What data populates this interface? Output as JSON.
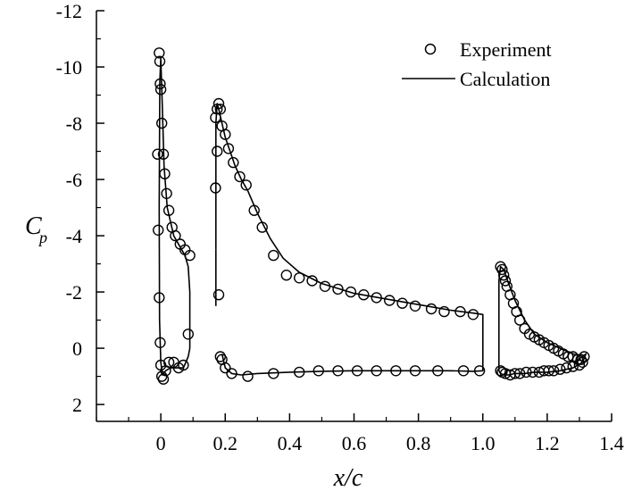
{
  "chart_data": {
    "type": "scatter",
    "title": "",
    "xlabel": "x/c",
    "ylabel_main": "C",
    "ylabel_sub": "p",
    "xlim": [
      -0.2,
      1.4
    ],
    "ylim": [
      2.6,
      -12
    ],
    "y_inverted": true,
    "grid": false,
    "legend_position": "top-right",
    "x_ticks": [
      0,
      0.2,
      0.4,
      0.6,
      0.8,
      1.0,
      1.2,
      1.4
    ],
    "x_tick_labels": [
      "0",
      "0.2",
      "0.4",
      "0.6",
      "0.8",
      "1.0",
      "1.2",
      "1.4"
    ],
    "y_ticks": [
      -12,
      -10,
      -8,
      -6,
      -4,
      -2,
      0,
      2
    ],
    "y_tick_labels": [
      "-12",
      "-10",
      "-8",
      "-6",
      "-4",
      "-2",
      "0",
      "2"
    ],
    "series": [
      {
        "name": "Experiment",
        "kind": "markers",
        "segments": [
          {
            "x": [
              -0.005,
              -0.003,
              -0.002,
              0.0,
              0.003,
              0.008,
              0.012,
              0.018,
              0.025,
              0.035,
              0.045,
              0.06,
              0.075,
              0.09,
              -0.01,
              -0.008,
              -0.005,
              -0.002,
              0.0,
              0.003,
              0.008,
              0.015,
              0.025,
              0.04,
              0.055,
              0.07,
              0.085
            ],
            "y": [
              -10.5,
              -10.2,
              -9.4,
              -9.2,
              -8.0,
              -6.9,
              -6.2,
              -5.5,
              -4.9,
              -4.3,
              -4.0,
              -3.7,
              -3.5,
              -3.3,
              -6.9,
              -4.2,
              -1.8,
              -0.2,
              0.6,
              1.0,
              1.1,
              0.8,
              0.5,
              0.5,
              0.7,
              0.6,
              -0.5
            ]
          },
          {
            "x": [
              0.17,
              0.175,
              0.18,
              0.185,
              0.19,
              0.2,
              0.21,
              0.225,
              0.245,
              0.265,
              0.29,
              0.315,
              0.35,
              0.39,
              0.43,
              0.47,
              0.51,
              0.55,
              0.59,
              0.63,
              0.67,
              0.71,
              0.75,
              0.79,
              0.84,
              0.88,
              0.93,
              0.97,
              0.185,
              0.2,
              0.22,
              0.27,
              0.35,
              0.43,
              0.49,
              0.55,
              0.61,
              0.67,
              0.73,
              0.79,
              0.86,
              0.94,
              0.99,
              0.17,
              0.175,
              0.18,
              0.19
            ],
            "y": [
              -8.2,
              -8.5,
              -8.7,
              -8.5,
              -7.9,
              -7.6,
              -7.1,
              -6.6,
              -6.1,
              -5.8,
              -4.9,
              -4.3,
              -3.3,
              -2.6,
              -2.5,
              -2.4,
              -2.2,
              -2.1,
              -2.0,
              -1.9,
              -1.8,
              -1.7,
              -1.6,
              -1.5,
              -1.4,
              -1.3,
              -1.3,
              -1.2,
              0.3,
              0.7,
              0.9,
              1.0,
              0.9,
              0.85,
              0.8,
              0.8,
              0.8,
              0.8,
              0.8,
              0.8,
              0.8,
              0.8,
              0.8,
              -5.7,
              -7.0,
              -1.9,
              0.4
            ]
          },
          {
            "x": [
              1.055,
              1.06,
              1.065,
              1.07,
              1.075,
              1.085,
              1.095,
              1.105,
              1.115,
              1.13,
              1.145,
              1.16,
              1.175,
              1.19,
              1.205,
              1.22,
              1.235,
              1.25,
              1.265,
              1.28,
              1.295,
              1.305,
              1.315,
              1.055,
              1.06,
              1.07,
              1.085,
              1.1,
              1.115,
              1.135,
              1.155,
              1.175,
              1.19,
              1.205,
              1.22,
              1.24,
              1.26,
              1.28,
              1.3,
              1.31
            ],
            "y": [
              -2.9,
              -2.8,
              -2.6,
              -2.4,
              -2.2,
              -1.9,
              -1.6,
              -1.3,
              -1.0,
              -0.7,
              -0.5,
              -0.4,
              -0.3,
              -0.2,
              -0.1,
              0.0,
              0.1,
              0.2,
              0.3,
              0.3,
              0.4,
              0.4,
              0.3,
              0.8,
              0.85,
              0.9,
              0.95,
              0.9,
              0.9,
              0.85,
              0.85,
              0.85,
              0.8,
              0.8,
              0.8,
              0.75,
              0.7,
              0.65,
              0.6,
              0.5
            ]
          }
        ]
      },
      {
        "name": "Calculation",
        "kind": "line",
        "segments": [
          {
            "x": [
              0.09,
              0.09,
              0.085,
              0.075,
              0.06,
              0.04,
              0.02,
              0.01,
              0.005,
              0.0,
              -0.003,
              -0.005,
              -0.004,
              0.0,
              0.005,
              0.015,
              0.03,
              0.05,
              0.07,
              0.085,
              0.09
            ],
            "y": [
              0.0,
              -2.0,
              -2.9,
              -3.3,
              -3.6,
              -4.0,
              -5.0,
              -6.5,
              -8.5,
              -10.3,
              -9.5,
              -5.0,
              -1.0,
              0.5,
              0.95,
              0.8,
              0.7,
              0.7,
              0.7,
              0.3,
              0.0
            ]
          },
          {
            "x": [
              0.171,
              0.171,
              0.175,
              0.18,
              0.19,
              0.2,
              0.215,
              0.23,
              0.25,
              0.27,
              0.3,
              0.34,
              0.38,
              0.43,
              0.5,
              0.6,
              0.7,
              0.8,
              0.9,
              0.97,
              1.0,
              1.0,
              0.97,
              0.9,
              0.8,
              0.7,
              0.6,
              0.5,
              0.4,
              0.3,
              0.25,
              0.22,
              0.2,
              0.19
            ],
            "y": [
              -3.5,
              -8.0,
              -8.7,
              -8.5,
              -8.0,
              -7.5,
              -7.0,
              -6.5,
              -6.0,
              -5.6,
              -4.8,
              -3.9,
              -3.2,
              -2.7,
              -2.3,
              -1.95,
              -1.75,
              -1.55,
              -1.35,
              -1.25,
              -1.2,
              0.8,
              0.82,
              0.8,
              0.8,
              0.8,
              0.8,
              0.82,
              0.85,
              0.9,
              0.95,
              0.9,
              0.7,
              0.2
            ]
          },
          {
            "x": [
              1.05,
              1.05,
              1.055,
              1.065,
              1.08,
              1.1,
              1.13,
              1.16,
              1.2,
              1.24,
              1.28,
              1.31,
              1.32,
              1.31,
              1.28,
              1.24,
              1.2,
              1.16,
              1.13,
              1.1,
              1.08,
              1.065,
              1.055,
              1.05
            ],
            "y": [
              0.8,
              -2.4,
              -2.9,
              -2.8,
              -2.3,
              -1.7,
              -1.0,
              -0.5,
              -0.2,
              0.0,
              0.2,
              0.3,
              0.2,
              0.5,
              0.7,
              0.8,
              0.85,
              0.85,
              0.9,
              0.9,
              0.95,
              0.95,
              0.9,
              0.8
            ]
          },
          {
            "x": [
              0.171,
              0.171
            ],
            "y": [
              -3.5,
              -1.5
            ]
          }
        ]
      }
    ]
  }
}
